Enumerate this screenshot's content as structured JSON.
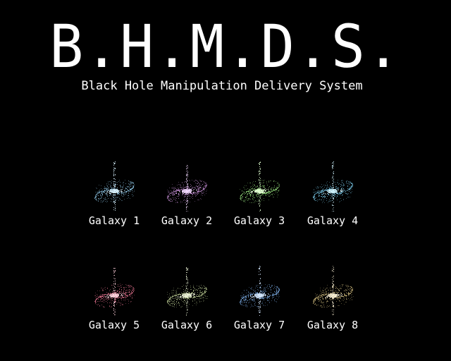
{
  "header": {
    "title": "B.H.M.D.S.",
    "subtitle": "Black Hole Manipulation Delivery System"
  },
  "galaxies": [
    {
      "label": "Galaxy 1",
      "color": "#8fc8e8",
      "core": "#d8f2ff"
    },
    {
      "label": "Galaxy 2",
      "color": "#c890d8",
      "core": "#f2d8ff"
    },
    {
      "label": "Galaxy 3",
      "color": "#90d878",
      "core": "#e0ffd0"
    },
    {
      "label": "Galaxy 4",
      "color": "#78c8e8",
      "core": "#d0f4ff"
    },
    {
      "label": "Galaxy 5",
      "color": "#e0708c",
      "core": "#ffd0dc"
    },
    {
      "label": "Galaxy 6",
      "color": "#b8c890",
      "core": "#eef6d8"
    },
    {
      "label": "Galaxy 7",
      "color": "#78a8e0",
      "core": "#d4e8ff"
    },
    {
      "label": "Galaxy 8",
      "color": "#c8b478",
      "core": "#f6ecd0"
    }
  ]
}
